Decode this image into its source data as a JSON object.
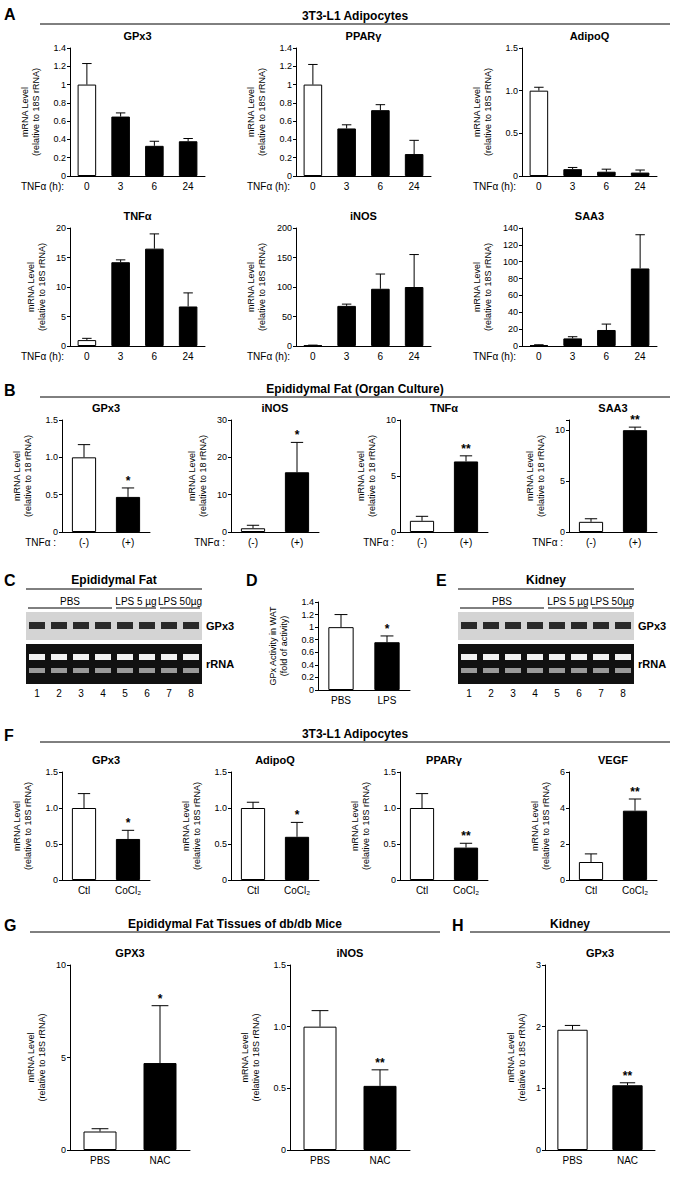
{
  "panels": [
    {
      "letter": "A",
      "header": "3T3-L1 Adipocytes"
    },
    {
      "letter": "B",
      "header": "Epididymal Fat (Organ Culture)"
    },
    {
      "letter": "C"
    },
    {
      "letter": "D"
    },
    {
      "letter": "E"
    },
    {
      "letter": "F",
      "header": "3T3-L1 Adipocytes"
    },
    {
      "letter": "G",
      "header": "Epididymal Fat Tissues of db/db Mice"
    },
    {
      "letter": "H",
      "header": "Kidney"
    }
  ],
  "gels": [
    {
      "panel": "C",
      "header": "Epididymal Fat",
      "groups": [
        {
          "label": "PBS",
          "lanes": [
            1,
            2,
            3,
            4
          ]
        },
        {
          "label": "LPS 5 µg",
          "lanes": [
            5,
            6
          ]
        },
        {
          "label": "LPS 50µg",
          "lanes": [
            7,
            8
          ]
        }
      ],
      "rows": [
        "GPx3",
        "rRNA"
      ],
      "lanes": [
        1,
        2,
        3,
        4,
        5,
        6,
        7,
        8
      ]
    },
    {
      "panel": "E",
      "header": "Kidney",
      "groups": [
        {
          "label": "PBS",
          "lanes": [
            1,
            2,
            3,
            4
          ]
        },
        {
          "label": "LPS 5 µg",
          "lanes": [
            5,
            6
          ]
        },
        {
          "label": "LPS 50µg",
          "lanes": [
            7,
            8
          ]
        }
      ],
      "rows": [
        "GPx3",
        "rRNA"
      ],
      "lanes": [
        1,
        2,
        3,
        4,
        5,
        6,
        7,
        8
      ]
    }
  ],
  "chart_data": [
    {
      "panel": "A",
      "type": "bar",
      "title": "GPx3",
      "ylabel": "mRNA Level\n(relative to 18S rRNA)",
      "xlabel": "TNFα (h):",
      "categories": [
        "0",
        "3",
        "6",
        "24"
      ],
      "values": [
        1.0,
        0.65,
        0.33,
        0.38
      ],
      "errors": [
        0.23,
        0.04,
        0.05,
        0.03
      ],
      "colors": [
        "#ffffff",
        "#000000",
        "#000000",
        "#000000"
      ],
      "ylim": [
        0,
        1.4
      ],
      "yticks": [
        0,
        0.2,
        0.4,
        0.6,
        0.8,
        1,
        1.2,
        1.4
      ]
    },
    {
      "panel": "A",
      "type": "bar",
      "title": "PPARγ",
      "ylabel": "mRNA Level\n(relative to 18S rRNA)",
      "xlabel": "TNFα (h):",
      "categories": [
        "0",
        "3",
        "6",
        "24"
      ],
      "values": [
        1.0,
        0.52,
        0.72,
        0.24
      ],
      "errors": [
        0.22,
        0.04,
        0.06,
        0.15
      ],
      "colors": [
        "#ffffff",
        "#000000",
        "#000000",
        "#000000"
      ],
      "ylim": [
        0,
        1.4
      ],
      "yticks": [
        0,
        0.2,
        0.4,
        0.6,
        0.8,
        1,
        1.2,
        1.4
      ]
    },
    {
      "panel": "A",
      "type": "bar",
      "title": "AdipoQ",
      "ylabel": "mRNA Level\n(relative to 18S rRNA)",
      "xlabel": "TNFα (h):",
      "categories": [
        "0",
        "3",
        "6",
        "24"
      ],
      "values": [
        1.0,
        0.08,
        0.05,
        0.04
      ],
      "errors": [
        0.04,
        0.02,
        0.03,
        0.03
      ],
      "colors": [
        "#ffffff",
        "#000000",
        "#000000",
        "#000000"
      ],
      "ylim": [
        0,
        1.5
      ],
      "yticks": [
        0,
        0.5,
        {
          "value": 1,
          "label": "1.0"
        },
        1.5
      ]
    },
    {
      "panel": "A",
      "type": "bar",
      "title": "TNFα",
      "ylabel": "mRNA Level\n(relative to 18S rRNA)",
      "xlabel": "TNFα (h):",
      "categories": [
        "0",
        "3",
        "6",
        "24"
      ],
      "values": [
        1,
        14.2,
        16.5,
        6.7
      ],
      "errors": [
        0.3,
        0.4,
        2.5,
        2.3
      ],
      "colors": [
        "#ffffff",
        "#000000",
        "#000000",
        "#000000"
      ],
      "ylim": [
        0,
        20
      ],
      "yticks": [
        0,
        5,
        10,
        15,
        20
      ]
    },
    {
      "panel": "A",
      "type": "bar",
      "title": "iNOS",
      "ylabel": "mRNA Level\n(relative to 18S rRNA)",
      "xlabel": "TNFα (h):",
      "categories": [
        "0",
        "3",
        "6",
        "24"
      ],
      "values": [
        1,
        68,
        97,
        100
      ],
      "errors": [
        0.5,
        3,
        25,
        55
      ],
      "colors": [
        "#ffffff",
        "#000000",
        "#000000",
        "#000000"
      ],
      "ylim": [
        0,
        200
      ],
      "yticks": [
        0,
        50,
        100,
        150,
        200
      ]
    },
    {
      "panel": "A",
      "type": "bar",
      "title": "SAA3",
      "ylabel": "mRNA Level\n(relative to 18S rRNA)",
      "xlabel": "TNFα (h):",
      "categories": [
        "0",
        "3",
        "6",
        "24"
      ],
      "values": [
        1,
        9,
        19,
        92
      ],
      "errors": [
        0.5,
        2,
        7,
        40
      ],
      "colors": [
        "#ffffff",
        "#000000",
        "#000000",
        "#000000"
      ],
      "ylim": [
        0,
        140
      ],
      "yticks": [
        0,
        20,
        40,
        60,
        80,
        100,
        120,
        140
      ]
    },
    {
      "panel": "B",
      "type": "bar",
      "title": "GPx3",
      "ylabel": "mRNA Level\n(relative to 18 rRNA)",
      "xlabel": "TNFα :",
      "categories": [
        "(-)",
        "(+)"
      ],
      "values": [
        1.0,
        0.47
      ],
      "errors": [
        0.17,
        0.12
      ],
      "significance": [
        null,
        "*"
      ],
      "colors": [
        "#ffffff",
        "#000000"
      ],
      "ylim": [
        0,
        1.5
      ],
      "yticks": [
        0,
        0.5,
        {
          "value": 1,
          "label": "1.0"
        },
        1.5
      ]
    },
    {
      "panel": "B",
      "type": "bar",
      "title": "iNOS",
      "ylabel": "mRNA Level\n(relative to 18 rRNA)",
      "xlabel": "TNFα :",
      "categories": [
        "(-)",
        "(+)"
      ],
      "values": [
        1,
        16
      ],
      "errors": [
        0.8,
        8
      ],
      "significance": [
        null,
        "*"
      ],
      "colors": [
        "#ffffff",
        "#000000"
      ],
      "ylim": [
        0,
        30
      ],
      "yticks": [
        0,
        10,
        20,
        30
      ]
    },
    {
      "panel": "B",
      "type": "bar",
      "title": "TNFα",
      "ylabel": "mRNA Level\n(relative to 18 rRNA)",
      "xlabel": "TNFα :",
      "categories": [
        "(-)",
        "(+)"
      ],
      "values": [
        1,
        6.3
      ],
      "errors": [
        0.4,
        0.5
      ],
      "significance": [
        null,
        "**"
      ],
      "colors": [
        "#ffffff",
        "#000000"
      ],
      "ylim": [
        0,
        10
      ],
      "yticks": [
        0,
        5,
        10
      ]
    },
    {
      "panel": "B",
      "type": "bar",
      "title": "SAA3",
      "ylabel": "mRNA Level\n(relative to 18 rRNA)",
      "xlabel": "TNFα :",
      "categories": [
        "(-)",
        "(+)"
      ],
      "values": [
        1,
        10
      ],
      "errors": [
        0.3,
        0.3
      ],
      "significance": [
        null,
        "**"
      ],
      "colors": [
        "#ffffff",
        "#000000"
      ],
      "ylim": [
        0,
        11
      ],
      "yticks": [
        0,
        5,
        10
      ]
    },
    {
      "panel": "D",
      "type": "bar",
      "ylabel": "GPx Activity in WAT\n(fold of activity)",
      "categories": [
        "PBS",
        "LPS"
      ],
      "values": [
        1.0,
        0.76
      ],
      "errors": [
        0.2,
        0.1
      ],
      "significance": [
        null,
        "*"
      ],
      "colors": [
        "#ffffff",
        "#000000"
      ],
      "ylim": [
        0,
        1.4
      ],
      "yticks": [
        0,
        0.2,
        0.4,
        0.6,
        0.8,
        1,
        1.2,
        1.4
      ]
    },
    {
      "panel": "F",
      "type": "bar",
      "title": "GPx3",
      "ylabel": "mRNA Level\n(relative to 18S rRNA)",
      "categories": [
        "Ctl",
        "CoCl₂"
      ],
      "values": [
        1.0,
        0.57
      ],
      "errors": [
        0.2,
        0.12
      ],
      "significance": [
        null,
        "*"
      ],
      "colors": [
        "#ffffff",
        "#000000"
      ],
      "ylim": [
        0,
        1.5
      ],
      "yticks": [
        0,
        0.5,
        {
          "value": 1,
          "label": "1.0"
        },
        1.5
      ]
    },
    {
      "panel": "F",
      "type": "bar",
      "title": "AdipoQ",
      "ylabel": "mRNA Level\n(relative to 18S rRNA)",
      "categories": [
        "Ctl",
        "CoCl₂"
      ],
      "values": [
        1.0,
        0.6
      ],
      "errors": [
        0.08,
        0.2
      ],
      "significance": [
        null,
        "*"
      ],
      "colors": [
        "#ffffff",
        "#000000"
      ],
      "ylim": [
        0,
        1.5
      ],
      "yticks": [
        0,
        0.5,
        {
          "value": 1,
          "label": "1.0"
        },
        1.5
      ]
    },
    {
      "panel": "F",
      "type": "bar",
      "title": "PPARγ",
      "ylabel": "mRNA Level\n(relative to 18S rRNA)",
      "categories": [
        "Ctl",
        "CoCl₂"
      ],
      "values": [
        1.0,
        0.45
      ],
      "errors": [
        0.2,
        0.06
      ],
      "significance": [
        null,
        "**"
      ],
      "colors": [
        "#ffffff",
        "#000000"
      ],
      "ylim": [
        0,
        1.5
      ],
      "yticks": [
        0,
        0.5,
        {
          "value": 1,
          "label": "1.0"
        },
        1.5
      ]
    },
    {
      "panel": "F",
      "type": "bar",
      "title": "VEGF",
      "ylabel": "mRNA Level\n(relative to 18S rRNA)",
      "categories": [
        "Ctl",
        "CoCl₂"
      ],
      "values": [
        1,
        3.85
      ],
      "errors": [
        0.45,
        0.65
      ],
      "significance": [
        null,
        "**"
      ],
      "colors": [
        "#ffffff",
        "#000000"
      ],
      "ylim": [
        0,
        6
      ],
      "yticks": [
        0,
        2,
        4,
        6
      ]
    },
    {
      "panel": "G",
      "type": "bar",
      "title": "GPX3",
      "ylabel": "mRNA Level\n(relative to 18S rRNA)",
      "categories": [
        "PBS",
        "NAC"
      ],
      "values": [
        1,
        4.7
      ],
      "errors": [
        0.15,
        3.1
      ],
      "significance": [
        null,
        "*"
      ],
      "colors": [
        "#ffffff",
        "#000000"
      ],
      "ylim": [
        0,
        10
      ],
      "yticks": [
        0,
        5,
        10
      ]
    },
    {
      "panel": "G",
      "type": "bar",
      "title": "iNOS",
      "ylabel": "mRNA Level\n(relative to 18S rRNA)",
      "categories": [
        "PBS",
        "NAC"
      ],
      "values": [
        1,
        0.52
      ],
      "errors": [
        0.13,
        0.13
      ],
      "significance": [
        null,
        "**"
      ],
      "colors": [
        "#ffffff",
        "#000000"
      ],
      "ylim": [
        0,
        1.5
      ],
      "yticks": [
        0,
        0.5,
        {
          "value": 1,
          "label": "1.0"
        },
        1.5
      ]
    },
    {
      "panel": "H",
      "type": "bar",
      "title": "GPx3",
      "ylabel": "mRNA Level\n(relative to 18S rRNA)",
      "categories": [
        "PBS",
        "NAC"
      ],
      "values": [
        1.95,
        1.05
      ],
      "errors": [
        0.07,
        0.04
      ],
      "significance": [
        null,
        "**"
      ],
      "colors": [
        "#ffffff",
        "#000000"
      ],
      "ylim": [
        0,
        3
      ],
      "yticks": [
        0,
        1,
        2,
        3
      ]
    }
  ]
}
